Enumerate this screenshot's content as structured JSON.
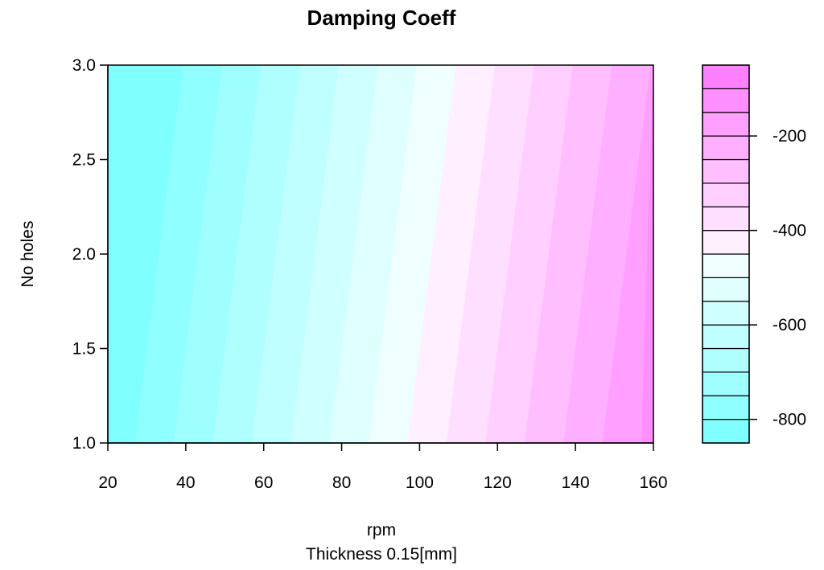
{
  "chart_data": {
    "type": "heatmap",
    "subtype": "filled-contour",
    "title": "Damping Coeff",
    "xlabel": "rpm",
    "sublabel": "Thickness 0.15[mm]",
    "ylabel": "No holes",
    "xlim": [
      20,
      160
    ],
    "ylim": [
      1.0,
      3.0
    ],
    "x_ticks": [
      20,
      40,
      60,
      80,
      100,
      120,
      140,
      160
    ],
    "x_tick_labels": [
      "20",
      "40",
      "60",
      "80",
      "100",
      "120",
      "140",
      "160"
    ],
    "y_ticks": [
      1.0,
      1.5,
      2.0,
      2.5,
      3.0
    ],
    "y_tick_labels": [
      "1.0",
      "1.5",
      "2.0",
      "2.5",
      "3.0"
    ],
    "contour_start": 27,
    "contour_slope": 6.2,
    "contour_step": 10,
    "levels": [
      -850,
      -800,
      -750,
      -700,
      -650,
      -600,
      -550,
      -500,
      -450,
      -400,
      -350,
      -300,
      -250,
      -200,
      -150,
      -100,
      -50
    ],
    "colorbar_ticks": [
      -800,
      -600,
      -400,
      -200
    ],
    "colorbar_tick_labels": [
      "-800",
      "-600",
      "-400",
      "-200"
    ],
    "colors": [
      "#80FFFF",
      "#8FFFFF",
      "#9FFFFF",
      "#AFFFFF",
      "#BFFFFF",
      "#CFFFFF",
      "#DFFFFF",
      "#EFFFFF",
      "#FFEFFF",
      "#FFDFFF",
      "#FFCFFF",
      "#FFBFFF",
      "#FFAFFF",
      "#FF9FFF",
      "#FF8FFF",
      "#FF80FF"
    ],
    "grid": false,
    "legend": "colorbar-right"
  }
}
